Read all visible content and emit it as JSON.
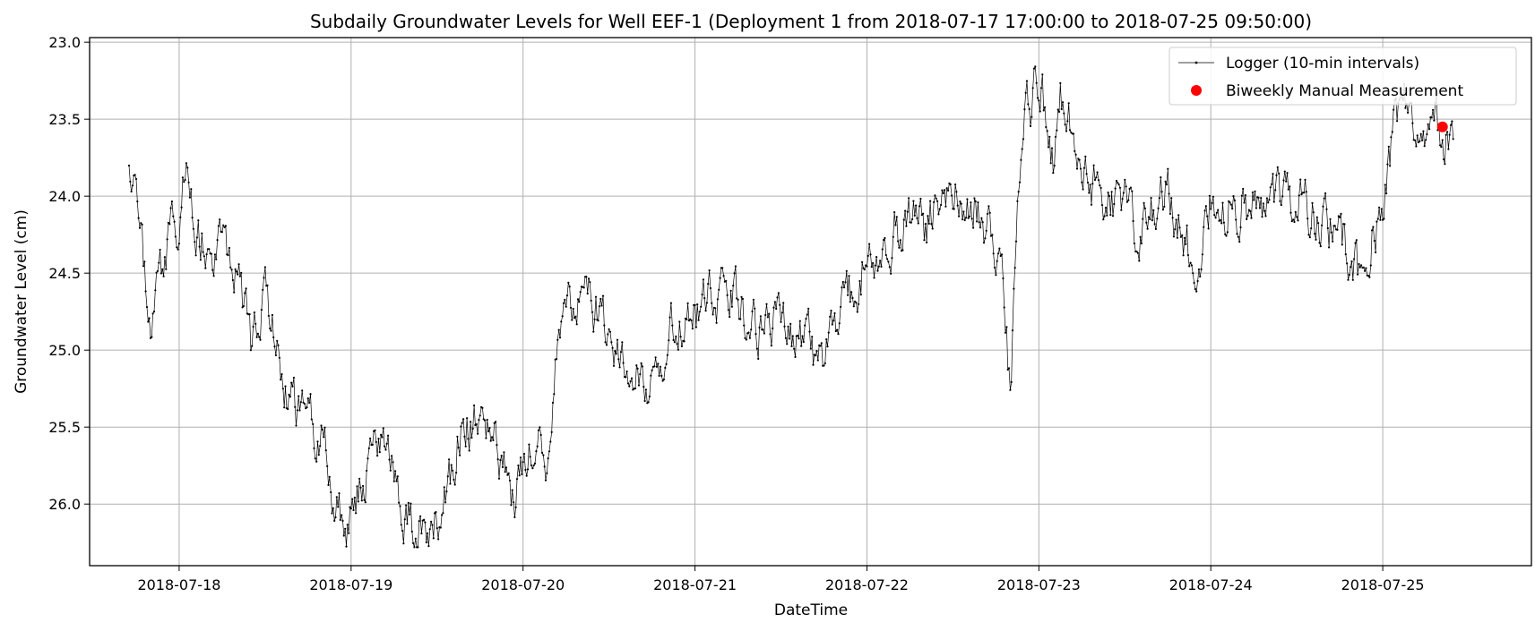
{
  "chart_data": {
    "type": "line",
    "title": "Subdaily Groundwater Levels for Well EEF-1 (Deployment 1 from 2018-07-17 17:00:00 to 2018-07-25 09:50:00)",
    "xlabel": "DateTime",
    "ylabel": "Groundwater Level (cm)",
    "y_inverted": true,
    "ylim": [
      26.4,
      22.97
    ],
    "xlim": [
      "2018-07-17 11:30",
      "2018-07-25 20:45"
    ],
    "grid": true,
    "legend_position": "upper-right",
    "x_tick_labels": [
      "2018-07-18",
      "2018-07-19",
      "2018-07-20",
      "2018-07-21",
      "2018-07-22",
      "2018-07-23",
      "2018-07-24",
      "2018-07-25"
    ],
    "y_tick_labels": [
      "23.0",
      "23.5",
      "24.0",
      "24.5",
      "25.0",
      "25.5",
      "26.0"
    ],
    "y_ticks": [
      23.0,
      23.5,
      24.0,
      24.5,
      25.0,
      25.5,
      26.0
    ],
    "series": [
      {
        "name": "Logger (10-min intervals)",
        "style": "line-with-small-markers",
        "color": "#000000",
        "sampling_interval_minutes": 10,
        "start": "2018-07-17 17:00",
        "end": "2018-07-25 09:50",
        "key_points": [
          {
            "x": "2018-07-17 17:00",
            "y": 23.77
          },
          {
            "x": "2018-07-17 18:00",
            "y": 24.15
          },
          {
            "x": "2018-07-17 19:00",
            "y": 24.5
          },
          {
            "x": "2018-07-17 20:00",
            "y": 24.75
          },
          {
            "x": "2018-07-17 21:00",
            "y": 24.5
          },
          {
            "x": "2018-07-18 00:00",
            "y": 24.1
          },
          {
            "x": "2018-07-18 01:00",
            "y": 23.8
          },
          {
            "x": "2018-07-18 03:00",
            "y": 24.3
          },
          {
            "x": "2018-07-18 06:00",
            "y": 24.3
          },
          {
            "x": "2018-07-18 09:00",
            "y": 24.7
          },
          {
            "x": "2018-07-18 10:00",
            "y": 25.05
          },
          {
            "x": "2018-07-18 12:00",
            "y": 24.7
          },
          {
            "x": "2018-07-18 15:00",
            "y": 25.3
          },
          {
            "x": "2018-07-18 20:00",
            "y": 25.6
          },
          {
            "x": "2018-07-18 22:00",
            "y": 26.0
          },
          {
            "x": "2018-07-18 23:00",
            "y": 26.2
          },
          {
            "x": "2018-07-19 02:00",
            "y": 25.8
          },
          {
            "x": "2018-07-19 05:00",
            "y": 25.65
          },
          {
            "x": "2018-07-19 08:00",
            "y": 26.1
          },
          {
            "x": "2018-07-19 10:00",
            "y": 26.2
          },
          {
            "x": "2018-07-19 13:00",
            "y": 26.0
          },
          {
            "x": "2018-07-19 15:00",
            "y": 25.55
          },
          {
            "x": "2018-07-19 18:00",
            "y": 25.35
          },
          {
            "x": "2018-07-19 21:00",
            "y": 25.75
          },
          {
            "x": "2018-07-19 23:00",
            "y": 25.95
          },
          {
            "x": "2018-07-20 02:00",
            "y": 25.55
          },
          {
            "x": "2018-07-20 04:00",
            "y": 25.75
          },
          {
            "x": "2018-07-20 05:00",
            "y": 24.85
          },
          {
            "x": "2018-07-20 08:00",
            "y": 24.6
          },
          {
            "x": "2018-07-20 12:00",
            "y": 24.9
          },
          {
            "x": "2018-07-20 15:00",
            "y": 25.2
          },
          {
            "x": "2018-07-20 18:00",
            "y": 25.15
          },
          {
            "x": "2018-07-20 21:00",
            "y": 24.85
          },
          {
            "x": "2018-07-21 00:00",
            "y": 24.75
          },
          {
            "x": "2018-07-21 04:00",
            "y": 24.6
          },
          {
            "x": "2018-07-21 08:00",
            "y": 24.8
          },
          {
            "x": "2018-07-21 12:00",
            "y": 24.85
          },
          {
            "x": "2018-07-21 16:00",
            "y": 25.0
          },
          {
            "x": "2018-07-21 18:00",
            "y": 25.1
          },
          {
            "x": "2018-07-21 20:00",
            "y": 24.8
          },
          {
            "x": "2018-07-22 00:00",
            "y": 24.4
          },
          {
            "x": "2018-07-22 04:00",
            "y": 24.2
          },
          {
            "x": "2018-07-22 08:00",
            "y": 24.2
          },
          {
            "x": "2018-07-22 12:00",
            "y": 23.95
          },
          {
            "x": "2018-07-22 16:00",
            "y": 24.1
          },
          {
            "x": "2018-07-22 19:00",
            "y": 24.4
          },
          {
            "x": "2018-07-22 20:00",
            "y": 25.3
          },
          {
            "x": "2018-07-22 21:00",
            "y": 24.2
          },
          {
            "x": "2018-07-22 22:00",
            "y": 23.6
          },
          {
            "x": "2018-07-23 00:00",
            "y": 23.2
          },
          {
            "x": "2018-07-23 02:00",
            "y": 23.8
          },
          {
            "x": "2018-07-23 03:00",
            "y": 23.3
          },
          {
            "x": "2018-07-23 06:00",
            "y": 23.85
          },
          {
            "x": "2018-07-23 10:00",
            "y": 24.0
          },
          {
            "x": "2018-07-23 14:00",
            "y": 24.2
          },
          {
            "x": "2018-07-23 18:00",
            "y": 23.95
          },
          {
            "x": "2018-07-23 22:00",
            "y": 24.5
          },
          {
            "x": "2018-07-24 00:00",
            "y": 24.0
          },
          {
            "x": "2018-07-24 06:00",
            "y": 24.05
          },
          {
            "x": "2018-07-24 12:00",
            "y": 24.05
          },
          {
            "x": "2018-07-24 18:00",
            "y": 24.25
          },
          {
            "x": "2018-07-24 21:00",
            "y": 24.55
          },
          {
            "x": "2018-07-25 00:00",
            "y": 24.0
          },
          {
            "x": "2018-07-25 02:00",
            "y": 23.5
          },
          {
            "x": "2018-07-25 04:00",
            "y": 23.4
          },
          {
            "x": "2018-07-25 06:00",
            "y": 23.75
          },
          {
            "x": "2018-07-25 07:30",
            "y": 23.55
          },
          {
            "x": "2018-07-25 09:50",
            "y": 23.65
          }
        ]
      },
      {
        "name": "Biweekly Manual Measurement",
        "style": "scatter",
        "color": "#ff0000",
        "points": [
          {
            "x": "2018-07-25 08:20",
            "y": 23.55
          }
        ]
      }
    ]
  }
}
